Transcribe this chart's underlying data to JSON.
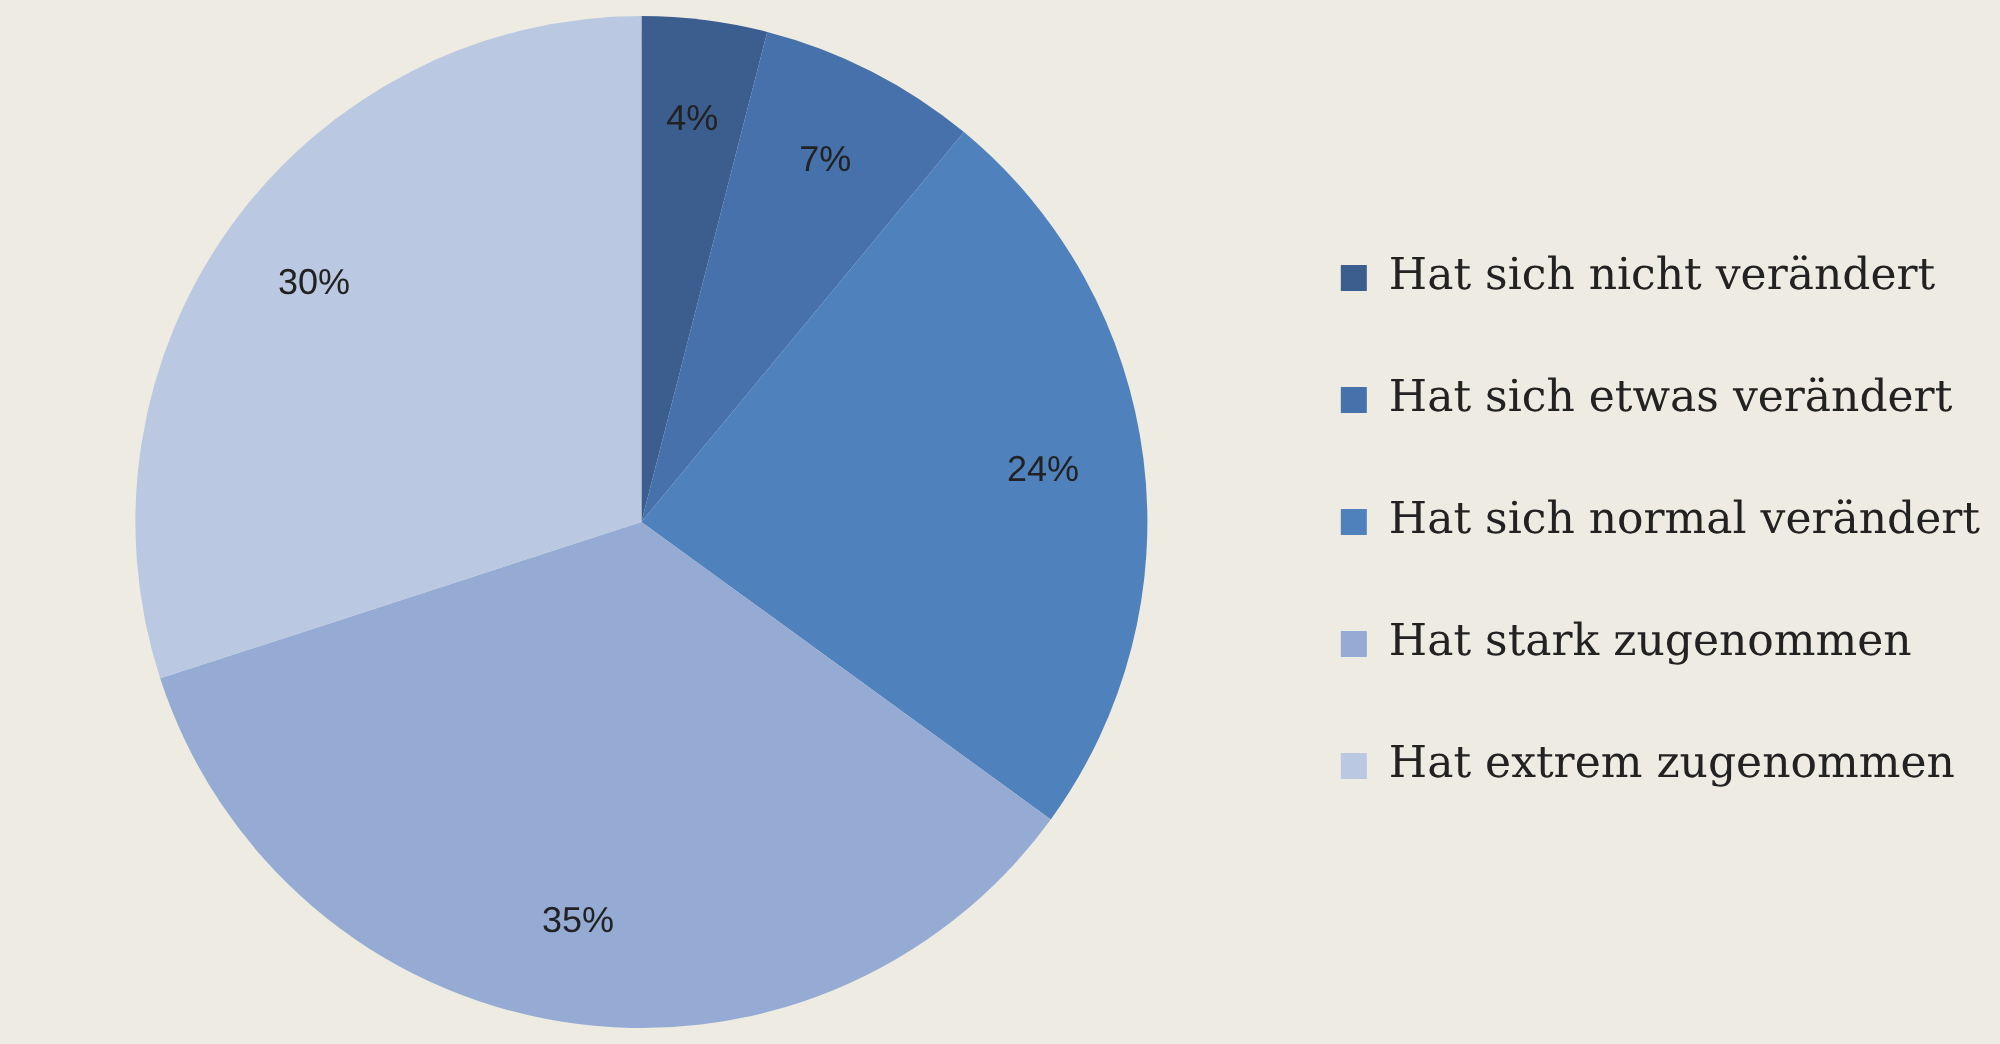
{
  "chart_data": {
    "type": "pie",
    "categories": [
      "Hat sich nicht verändert",
      "Hat sich etwas verändert",
      "Hat sich normal verändert",
      "Hat stark zugenommen",
      "Hat extrem zugenommen"
    ],
    "values": [
      4,
      7,
      24,
      35,
      30
    ],
    "colors": [
      "#3b5e8f",
      "#4671aa",
      "#4f81bd",
      "#95abd3",
      "#bac8e2"
    ],
    "value_labels": [
      "4%",
      "7%",
      "24%",
      "35%",
      "30%"
    ],
    "legend": "right"
  }
}
